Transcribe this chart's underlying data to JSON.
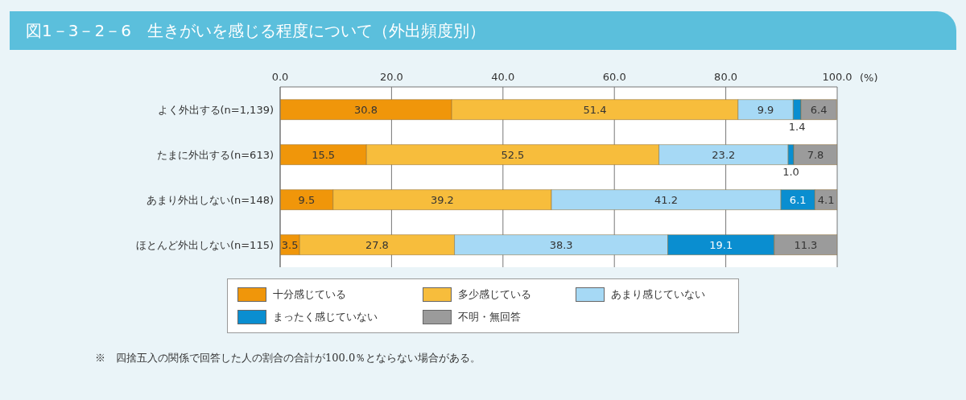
{
  "chart_data": {
    "type": "bar",
    "orientation": "horizontal",
    "stacked": true,
    "title": "図1－3－2－6　生きがいを感じる程度について（外出頻度別）",
    "xlabel": "(%)",
    "categories": [
      "よく外出する(n=1,139)",
      "たまに外出する(n=613)",
      "あまり外出しない(n=148)",
      "ほとんど外出しない(n=115)"
    ],
    "series": [
      {
        "name": "十分感じている",
        "color": "#f0960a",
        "values": [
          30.8,
          15.5,
          9.5,
          3.5
        ],
        "value_labels": [
          "30.8",
          "15.5",
          "9.5",
          "3.5"
        ]
      },
      {
        "name": "多少感じている",
        "color": "#f7bd3c",
        "values": [
          51.4,
          52.5,
          39.2,
          27.8
        ],
        "value_labels": [
          "51.4",
          "52.5",
          "39.2",
          "27.8"
        ]
      },
      {
        "name": "あまり感じていない",
        "color": "#a6d9f5",
        "values": [
          9.9,
          23.2,
          41.2,
          38.3
        ],
        "value_labels": [
          "9.9",
          "23.2",
          "41.2",
          "38.3"
        ]
      },
      {
        "name": "まったく感じていない",
        "color": "#0a8ed0",
        "values": [
          1.4,
          1.0,
          6.1,
          19.1
        ],
        "value_labels": [
          "1.4",
          "1.0",
          "6.1",
          "19.1"
        ]
      },
      {
        "name": "不明・無回答",
        "color": "#9b9b9b",
        "values": [
          6.4,
          7.8,
          4.1,
          11.3
        ],
        "value_labels": [
          "6.4",
          "7.8",
          "4.1",
          "11.3"
        ]
      }
    ],
    "xlim": [
      0,
      100
    ],
    "xticks": [
      {
        "value": 0,
        "label": "0.0"
      },
      {
        "value": 20,
        "label": "20.0"
      },
      {
        "value": 40,
        "label": "40.0"
      },
      {
        "value": 60,
        "label": "60.0"
      },
      {
        "value": 80,
        "label": "80.0"
      },
      {
        "value": 100,
        "label": "100.0"
      }
    ],
    "grid": "x",
    "legend": "bottom",
    "annotations": [
      "※　四捨五入の関係で回答した人の割合の合計が100.0％とならない場合がある。"
    ]
  }
}
